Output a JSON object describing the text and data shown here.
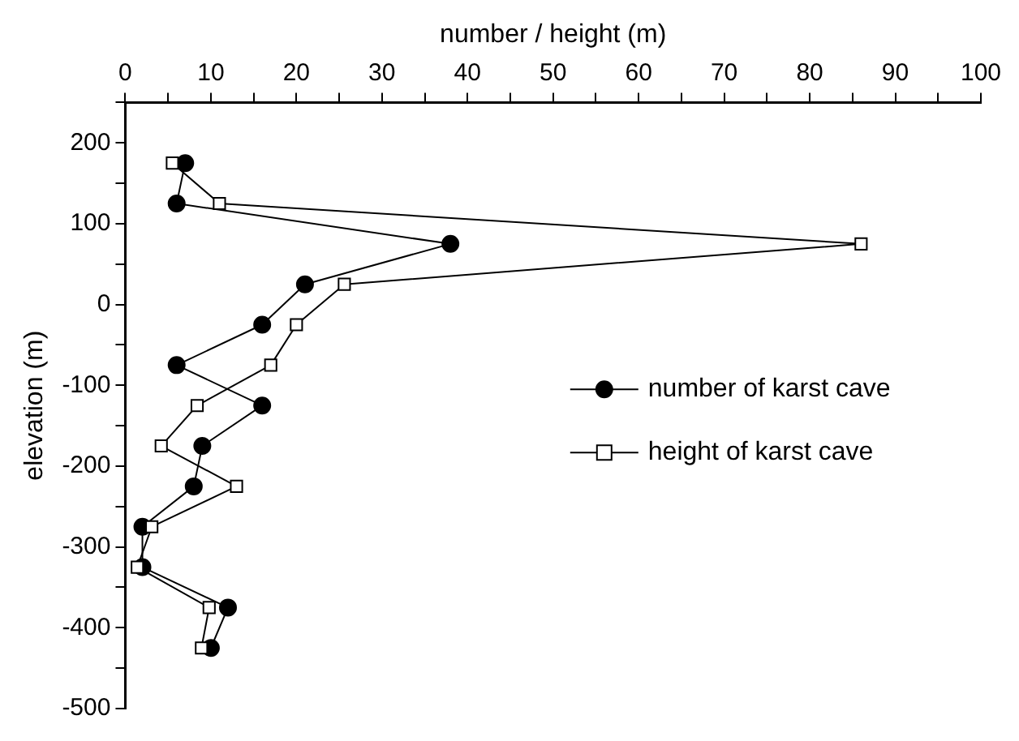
{
  "chart_data": {
    "type": "line",
    "xlabel": "number / height (m)",
    "ylabel": "elevation (m)",
    "xlim": [
      0,
      100
    ],
    "xticks": [
      0,
      {
        "value": 5,
        "label": null
      },
      10,
      {
        "value": 15,
        "label": null
      },
      20,
      {
        "value": 25,
        "label": null
      },
      30,
      {
        "value": 35,
        "label": null
      },
      40,
      {
        "value": 45,
        "label": null
      },
      50,
      {
        "value": 55,
        "label": null
      },
      60,
      {
        "value": 65,
        "label": null
      },
      70,
      {
        "value": 75,
        "label": null
      },
      80,
      {
        "value": 85,
        "label": null
      },
      90,
      {
        "value": 95,
        "label": null
      },
      100
    ],
    "ylim": [
      -500,
      250
    ],
    "yticks": [
      -500,
      {
        "value": -450,
        "label": null
      },
      -400,
      {
        "value": -350,
        "label": null
      },
      -300,
      {
        "value": -250,
        "label": null
      },
      -200,
      {
        "value": -150,
        "label": null
      },
      -100,
      {
        "value": -50,
        "label": null
      },
      0,
      {
        "value": 50,
        "label": null
      },
      100,
      {
        "value": 150,
        "label": null
      },
      200,
      {
        "value": 250,
        "label": null
      }
    ],
    "grid": false,
    "legend": "right",
    "line_style": "solid",
    "series": [
      {
        "name": "number of karst cave",
        "color": "#000000",
        "marker": "circle",
        "x": [
          7,
          6,
          38,
          21,
          16,
          6,
          16,
          9,
          8,
          2,
          2,
          12,
          10
        ],
        "values": [
          175,
          125,
          75,
          25,
          -25,
          -75,
          -125,
          -175,
          -225,
          -275,
          -325,
          -375,
          -425
        ]
      },
      {
        "name": "height of karst cave",
        "color": "#000000",
        "marker": "square",
        "x": [
          5.5,
          11,
          86,
          25.6,
          20,
          17,
          8.4,
          4.2,
          13,
          3.1,
          1.4,
          9.8,
          8.9
        ],
        "values": [
          175,
          125,
          75,
          25,
          -25,
          -75,
          -125,
          -175,
          -225,
          -275,
          -325,
          -375,
          -425
        ]
      }
    ]
  }
}
